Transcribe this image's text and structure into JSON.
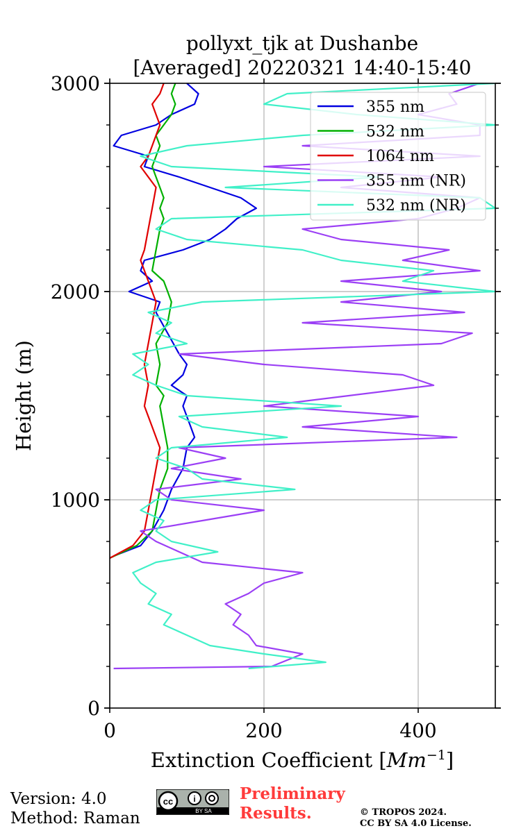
{
  "chart_data": {
    "type": "line",
    "title": [
      "pollyxt_tjk at Dushanbe",
      "[Averaged] 20220321 14:40-15:40"
    ],
    "xlabel": "Extinction Coefficient [Mm⁻¹]",
    "ylabel": "Height (m)",
    "xlim": [
      0,
      500
    ],
    "ylim": [
      0,
      3000
    ],
    "xticks": [
      0,
      200,
      400
    ],
    "yticks": [
      0,
      1000,
      2000,
      3000
    ],
    "xtick_labels": [
      "0",
      "200",
      "400"
    ],
    "ytick_labels": [
      "0",
      "1000",
      "2000",
      "3000"
    ],
    "y_minor_step": 200,
    "grid": true,
    "legend_position": "top-right",
    "series": [
      {
        "name": "355 nm",
        "color": "#0000e0",
        "height": [
          730,
          780,
          850,
          950,
          1050,
          1150,
          1250,
          1300,
          1350,
          1450,
          1500,
          1550,
          1600,
          1650,
          1700,
          1800,
          1900,
          1950,
          2000,
          2050,
          2100,
          2150,
          2200,
          2250,
          2300,
          2350,
          2400,
          2450,
          2500,
          2550,
          2600,
          2650,
          2700,
          2750,
          2800,
          2850,
          2900,
          2950,
          3000
        ],
        "values": [
          5,
          40,
          55,
          70,
          80,
          95,
          100,
          110,
          105,
          95,
          100,
          80,
          95,
          100,
          90,
          75,
          60,
          65,
          25,
          55,
          40,
          45,
          95,
          130,
          150,
          165,
          190,
          170,
          130,
          90,
          45,
          50,
          5,
          15,
          60,
          80,
          110,
          115,
          100
        ]
      },
      {
        "name": "532 nm",
        "color": "#00b000",
        "height": [
          720,
          780,
          850,
          950,
          1050,
          1150,
          1250,
          1350,
          1450,
          1500,
          1550,
          1650,
          1750,
          1850,
          1950,
          2000,
          2050,
          2100,
          2200,
          2300,
          2350,
          2400,
          2450,
          2500,
          2550,
          2600,
          2650,
          2700,
          2750,
          2800,
          2850,
          2900,
          2950,
          3000
        ],
        "values": [
          0,
          35,
          55,
          60,
          65,
          75,
          75,
          70,
          65,
          70,
          60,
          65,
          60,
          75,
          80,
          75,
          70,
          55,
          60,
          65,
          70,
          65,
          70,
          65,
          60,
          55,
          60,
          65,
          60,
          70,
          80,
          85,
          80,
          85
        ]
      },
      {
        "name": "1064 nm",
        "color": "#e00000",
        "height": [
          720,
          780,
          850,
          950,
          1050,
          1150,
          1250,
          1350,
          1450,
          1550,
          1650,
          1750,
          1850,
          1950,
          2050,
          2150,
          2200,
          2300,
          2400,
          2500,
          2600,
          2650,
          2700,
          2750,
          2800,
          2850,
          2900,
          2950,
          3000
        ],
        "values": [
          0,
          30,
          45,
          50,
          55,
          60,
          65,
          55,
          45,
          50,
          45,
          50,
          55,
          60,
          50,
          40,
          45,
          50,
          55,
          60,
          40,
          50,
          55,
          60,
          65,
          60,
          55,
          65,
          70
        ]
      },
      {
        "name": "355 nm (NR)",
        "color": "#9b3ff5",
        "height": [
          190,
          200,
          260,
          300,
          350,
          400,
          450,
          500,
          550,
          600,
          650,
          700,
          750,
          800,
          850,
          900,
          950,
          1000,
          1050,
          1100,
          1150,
          1200,
          1250,
          1300,
          1350,
          1400,
          1450,
          1500,
          1550,
          1600,
          1650,
          1700,
          1750,
          1800,
          1850,
          1900,
          1950,
          2000,
          2050,
          2100,
          2150,
          2200,
          2250,
          2300,
          2350,
          2400,
          2450,
          2500,
          2550,
          2600,
          2650,
          2700,
          2750,
          2800,
          2850,
          2900,
          2950,
          3000
        ],
        "values": [
          5,
          210,
          250,
          190,
          180,
          160,
          170,
          150,
          180,
          200,
          250,
          120,
          90,
          60,
          40,
          120,
          200,
          80,
          60,
          170,
          80,
          150,
          90,
          450,
          250,
          400,
          200,
          310,
          420,
          380,
          200,
          90,
          430,
          470,
          250,
          460,
          300,
          430,
          300,
          480,
          380,
          440,
          300,
          250,
          400,
          450,
          480,
          300,
          430,
          200,
          480,
          250,
          480,
          480,
          400,
          450,
          440,
          480
        ]
      },
      {
        "name": "532 nm (NR)",
        "color": "#40f0c8",
        "height": [
          190,
          220,
          260,
          300,
          350,
          400,
          450,
          500,
          550,
          600,
          650,
          700,
          750,
          800,
          850,
          900,
          950,
          1000,
          1050,
          1100,
          1150,
          1200,
          1250,
          1300,
          1350,
          1400,
          1450,
          1500,
          1550,
          1600,
          1650,
          1700,
          1750,
          1800,
          1850,
          1900,
          1950,
          2000,
          2050,
          2100,
          2150,
          2200,
          2250,
          2300,
          2350,
          2400,
          2450,
          2500,
          2550,
          2600,
          2650,
          2700,
          2750,
          2800,
          2850,
          2900,
          2950,
          3000
        ],
        "values": [
          180,
          280,
          200,
          130,
          100,
          70,
          80,
          50,
          60,
          40,
          30,
          60,
          140,
          80,
          60,
          70,
          40,
          60,
          240,
          120,
          100,
          60,
          80,
          230,
          120,
          90,
          300,
          100,
          60,
          30,
          50,
          30,
          100,
          60,
          80,
          50,
          120,
          500,
          380,
          420,
          300,
          250,
          100,
          60,
          80,
          500,
          480,
          150,
          350,
          80,
          40,
          100,
          250,
          500,
          320,
          200,
          230,
          500
        ]
      }
    ]
  },
  "footer": {
    "version": "Version: 4.0",
    "method": "Method: Raman",
    "prelim_line1": "Preliminary",
    "prelim_line2": "Results.",
    "copyright_line1": "© TROPOS 2024.",
    "copyright_line2": "CC BY SA 4.0 License.",
    "cc_badge_text": "BY  SA"
  }
}
